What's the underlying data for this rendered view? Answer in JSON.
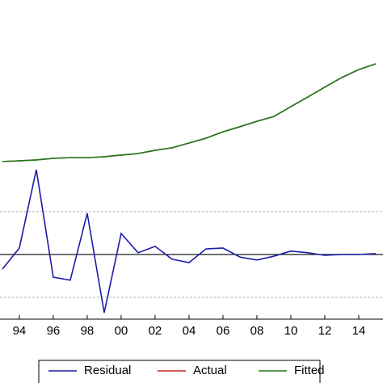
{
  "chart_data": {
    "type": "line",
    "x": [
      1993,
      1994,
      1995,
      1996,
      1997,
      1998,
      1999,
      2000,
      2001,
      2002,
      2003,
      2004,
      2005,
      2006,
      2007,
      2008,
      2009,
      2010,
      2011,
      2012,
      2013,
      2014,
      2015
    ],
    "xlim": [
      1992.86,
      2015.43
    ],
    "xticks": [
      {
        "value": 1994,
        "label": "94"
      },
      {
        "value": 1996,
        "label": "96"
      },
      {
        "value": 1998,
        "label": "98"
      },
      {
        "value": 2000,
        "label": "00"
      },
      {
        "value": 2002,
        "label": "02"
      },
      {
        "value": 2004,
        "label": "04"
      },
      {
        "value": 2006,
        "label": "06"
      },
      {
        "value": 2008,
        "label": "08"
      },
      {
        "value": 2010,
        "label": "10"
      },
      {
        "value": 2012,
        "label": "12"
      },
      {
        "value": 2014,
        "label": "14"
      }
    ],
    "ylim": [
      0,
      10
    ],
    "y2lim": [
      -1.51,
      5.94
    ],
    "y2ticks": [
      -1,
      0,
      1
    ],
    "series": [
      {
        "name": "Residual",
        "color": "#1c1ca8",
        "axis": "y2",
        "values": [
          -0.34,
          0.15,
          1.98,
          -0.53,
          -0.6,
          0.96,
          -1.36,
          0.49,
          0.04,
          0.19,
          -0.11,
          -0.19,
          0.13,
          0.15,
          -0.06,
          -0.13,
          -0.04,
          0.08,
          0.04,
          -0.02,
          0,
          0,
          0.02
        ]
      },
      {
        "name": "Actual",
        "color": "#cc2020",
        "axis": "y",
        "values": [
          4.94,
          4.96,
          4.99,
          5.04,
          5.06,
          5.06,
          5.09,
          5.14,
          5.19,
          5.29,
          5.37,
          5.52,
          5.67,
          5.87,
          6.03,
          6.2,
          6.35,
          6.66,
          6.96,
          7.27,
          7.57,
          7.82,
          8.0
        ]
      },
      {
        "name": "Fitted",
        "color": "#1e7a1e",
        "axis": "y",
        "values": [
          4.94,
          4.96,
          4.99,
          5.04,
          5.06,
          5.06,
          5.09,
          5.14,
          5.19,
          5.29,
          5.37,
          5.52,
          5.67,
          5.87,
          6.03,
          6.2,
          6.35,
          6.66,
          6.96,
          7.27,
          7.57,
          7.82,
          8.0
        ]
      }
    ]
  }
}
